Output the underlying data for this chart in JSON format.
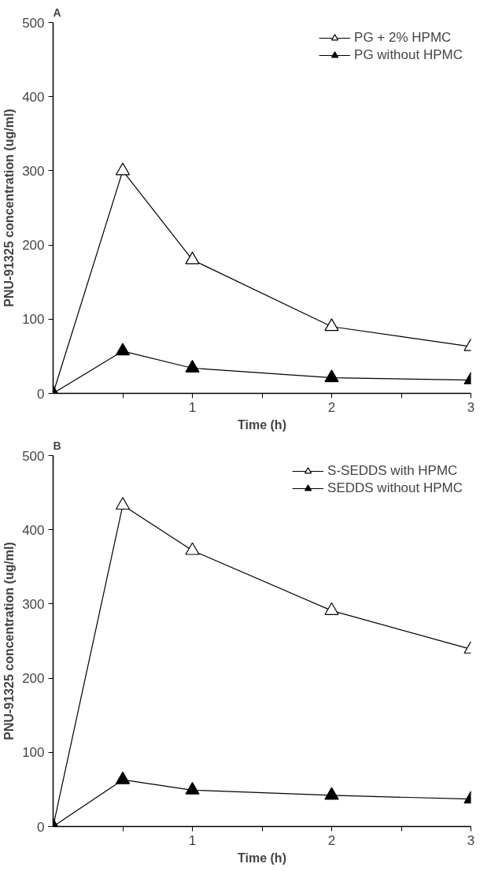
{
  "chart_data": [
    {
      "type": "line",
      "title": "A",
      "xlabel": "Time (h)",
      "ylabel": "PNU-91325 concentration (ug/ml)",
      "x": [
        0,
        0.5,
        1,
        2,
        3
      ],
      "xlim": [
        0,
        3
      ],
      "ylim": [
        0,
        500
      ],
      "xticks": [
        {
          "value": 0.5,
          "label": null
        },
        1,
        {
          "value": 1.5,
          "label": null
        },
        2,
        {
          "value": 2.5,
          "label": null
        },
        3
      ],
      "yticks": [
        0,
        100,
        200,
        300,
        400,
        500
      ],
      "marker": "triangle",
      "line_style": "solid",
      "legend": "top right",
      "grid": false,
      "series": [
        {
          "name": "PG + 2% HPMC",
          "color": "#000000",
          "colors": [
            "#ffffff",
            "#ffffff",
            "#ffffff",
            "#ffffff",
            "#ffffff"
          ],
          "values": [
            0,
            300,
            180,
            90,
            63
          ]
        },
        {
          "name": "PG without HPMC",
          "color": "#000000",
          "colors": [
            "#000000",
            "#000000",
            "#000000",
            "#000000",
            "#000000"
          ],
          "values": [
            0,
            57,
            34,
            21,
            18
          ]
        }
      ]
    },
    {
      "type": "line",
      "title": "B",
      "xlabel": "Time (h)",
      "ylabel": "PNU-91325 concentration (ug/ml)",
      "x": [
        0,
        0.5,
        1,
        2,
        3
      ],
      "xlim": [
        0,
        3
      ],
      "ylim": [
        0,
        500
      ],
      "xticks": [
        {
          "value": 0.5,
          "label": null
        },
        1,
        {
          "value": 1.5,
          "label": null
        },
        2,
        {
          "value": 2.5,
          "label": null
        },
        3
      ],
      "yticks": [
        0,
        100,
        200,
        300,
        400,
        500
      ],
      "marker": "triangle",
      "line_style": "solid",
      "legend": "top right",
      "grid": false,
      "series": [
        {
          "name": "S-SEDDS with HPMC",
          "color": "#000000",
          "colors": [
            "#ffffff",
            "#ffffff",
            "#ffffff",
            "#ffffff",
            "#ffffff"
          ],
          "values": [
            0,
            433,
            372,
            291,
            239
          ]
        },
        {
          "name": "SEDDS without HPMC",
          "color": "#000000",
          "colors": [
            "#000000",
            "#000000",
            "#000000",
            "#000000",
            "#000000"
          ],
          "values": [
            0,
            63,
            49,
            42,
            37
          ]
        }
      ]
    }
  ]
}
